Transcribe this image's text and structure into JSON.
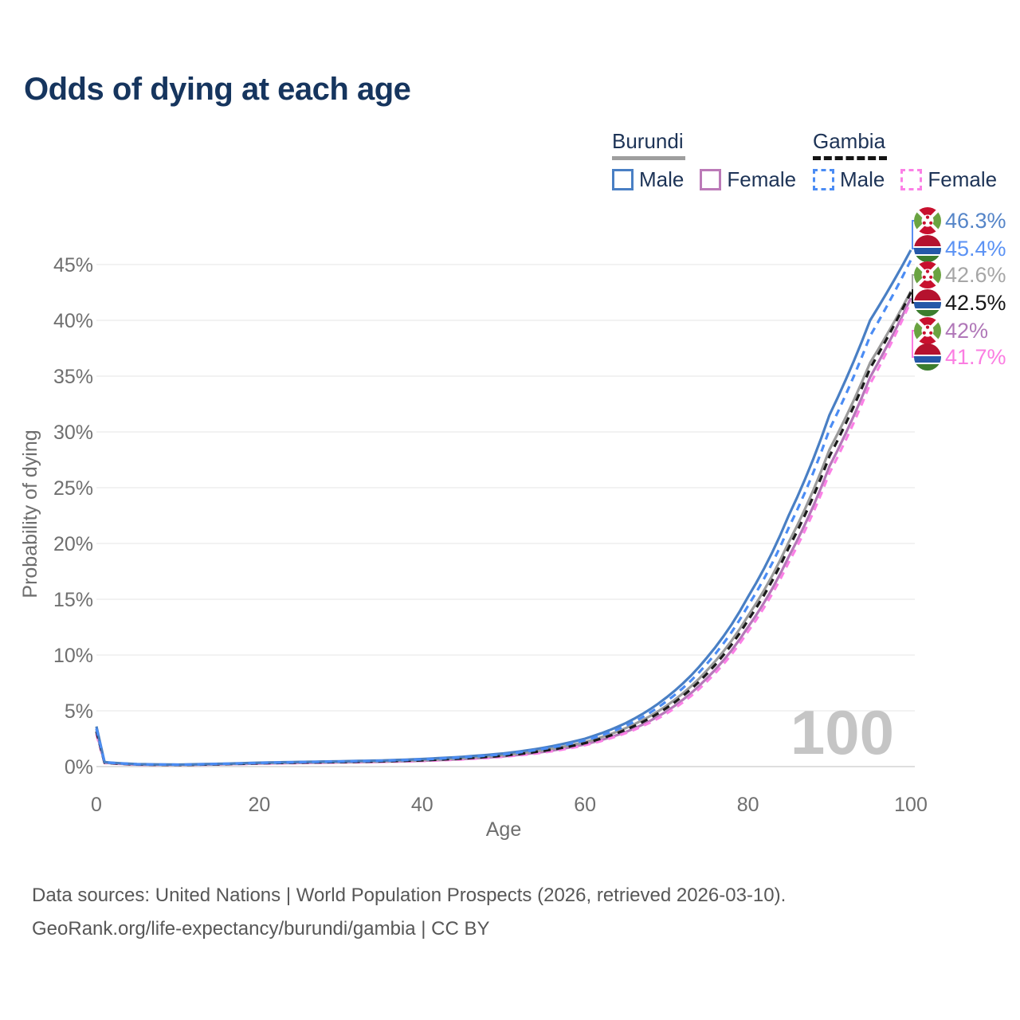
{
  "title": "Odds of dying at each age",
  "legend": {
    "groups": [
      {
        "label": "Burundi",
        "line_style": "solid",
        "underline_color": "#9e9e9e",
        "items": [
          {
            "label": "Male",
            "color": "#497fc4",
            "dashed": false
          },
          {
            "label": "Female",
            "color": "#bc7ab8",
            "dashed": false
          }
        ]
      },
      {
        "label": "Gambia",
        "line_style": "dashed",
        "underline_color": "#141414",
        "items": [
          {
            "label": "Male",
            "color": "#4b8cf4",
            "dashed": true
          },
          {
            "label": "Female",
            "color": "#fb80e6",
            "dashed": true
          }
        ]
      }
    ]
  },
  "chart_data": {
    "type": "line",
    "title": "Odds of dying at each age",
    "xlabel": "Age",
    "ylabel": "Probability of dying",
    "xlim": [
      0,
      100
    ],
    "ylim_pct": [
      0,
      47
    ],
    "grid": "horizontal",
    "legend_position": "top-right",
    "watermark": "100",
    "yticks": [
      "0%",
      "5%",
      "10%",
      "15%",
      "20%",
      "25%",
      "30%",
      "35%",
      "40%",
      "45%"
    ],
    "xticks": [
      0,
      20,
      40,
      60,
      80,
      100
    ],
    "ages": [
      0,
      1,
      5,
      10,
      15,
      20,
      25,
      30,
      35,
      40,
      45,
      50,
      55,
      60,
      65,
      70,
      75,
      80,
      85,
      90,
      95,
      100
    ],
    "series": [
      {
        "name": "Burundi Male",
        "color": "#497fc4",
        "dash": "solid",
        "values_pct": [
          3.6,
          0.4,
          0.22,
          0.18,
          0.25,
          0.35,
          0.42,
          0.48,
          0.55,
          0.68,
          0.88,
          1.18,
          1.7,
          2.5,
          3.9,
          6.2,
          9.8,
          15.2,
          22.5,
          31.5,
          40.0,
          46.3
        ]
      },
      {
        "name": "Gambia Male",
        "color": "#4b8cf4",
        "dash": "dashed",
        "values_pct": [
          3.4,
          0.38,
          0.21,
          0.17,
          0.24,
          0.33,
          0.4,
          0.46,
          0.52,
          0.64,
          0.83,
          1.1,
          1.6,
          2.35,
          3.65,
          5.85,
          9.25,
          14.4,
          21.4,
          30.2,
          38.6,
          45.4
        ]
      },
      {
        "name": "Burundi Both sexes",
        "color": "#9b9b9b",
        "dash": "solid",
        "values_pct": [
          3.35,
          0.37,
          0.2,
          0.16,
          0.22,
          0.31,
          0.37,
          0.42,
          0.48,
          0.58,
          0.76,
          1.02,
          1.48,
          2.2,
          3.45,
          5.45,
          8.65,
          13.5,
          20.1,
          28.4,
          36.2,
          42.6
        ]
      },
      {
        "name": "Gambia Both sexes",
        "color": "#1a1a1a",
        "dash": "dashed",
        "values_pct": [
          3.15,
          0.35,
          0.19,
          0.15,
          0.21,
          0.3,
          0.36,
          0.41,
          0.47,
          0.56,
          0.73,
          0.98,
          1.42,
          2.1,
          3.3,
          5.25,
          8.35,
          13.1,
          19.6,
          27.8,
          35.7,
          42.5
        ]
      },
      {
        "name": "Burundi Female",
        "color": "#b578b8",
        "dash": "solid",
        "values_pct": [
          3.1,
          0.34,
          0.18,
          0.15,
          0.2,
          0.28,
          0.33,
          0.38,
          0.43,
          0.52,
          0.68,
          0.92,
          1.33,
          2.0,
          3.1,
          4.95,
          7.95,
          12.5,
          18.8,
          26.9,
          34.9,
          42.0
        ]
      },
      {
        "name": "Gambia Female",
        "color": "#fb80e6",
        "dash": "dashed",
        "values_pct": [
          2.9,
          0.32,
          0.17,
          0.14,
          0.19,
          0.27,
          0.32,
          0.37,
          0.42,
          0.5,
          0.65,
          0.88,
          1.27,
          1.92,
          3.0,
          4.75,
          7.65,
          12.1,
          18.3,
          26.3,
          34.3,
          41.7
        ]
      }
    ],
    "end_labels": [
      {
        "flag": "burundi",
        "text": "46.3%",
        "color": "#5585c8",
        "value_pct": 46.3
      },
      {
        "flag": "gambia",
        "text": "45.4%",
        "color": "#5b92f4",
        "value_pct": 45.4
      },
      {
        "flag": "burundi",
        "text": "42.6%",
        "color": "#a6a6a6",
        "value_pct": 42.6
      },
      {
        "flag": "gambia",
        "text": "42.5%",
        "color": "#161616",
        "value_pct": 42.5
      },
      {
        "flag": "burundi",
        "text": "42%",
        "color": "#b077b8",
        "value_pct": 42.0
      },
      {
        "flag": "gambia",
        "text": "41.7%",
        "color": "#fb7de2",
        "value_pct": 41.7
      }
    ]
  },
  "footer": {
    "line1": "Data sources: United Nations | World Population Prospects (2026, retrieved 2026-03-10).",
    "line2": "GeoRank.org/life-expectancy/burundi/gambia | CC BY"
  }
}
